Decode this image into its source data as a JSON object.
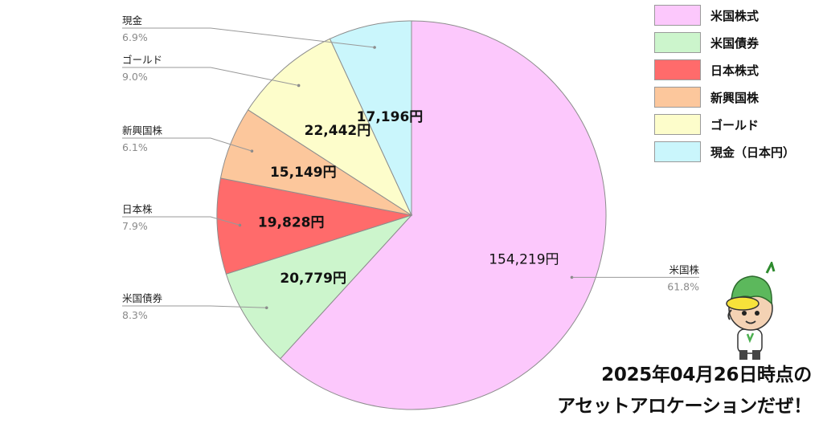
{
  "chart_data": {
    "type": "pie",
    "slices": [
      {
        "key": "us_stock",
        "side_label": "米国株",
        "percent_label": "61.8%",
        "percent": 61.8,
        "value_label": "154,219円",
        "value": 154219,
        "color": "#fcc8fc"
      },
      {
        "key": "us_bond",
        "side_label": "米国債券",
        "percent_label": "8.3%",
        "percent": 8.3,
        "value_label": "20,779円",
        "value": 20779,
        "color": "#ccf5cc"
      },
      {
        "key": "jp_stock",
        "side_label": "日本株",
        "percent_label": "7.9%",
        "percent": 7.9,
        "value_label": "19,828円",
        "value": 19828,
        "color": "#ff6b6b"
      },
      {
        "key": "emerging",
        "side_label": "新興国株",
        "percent_label": "6.1%",
        "percent": 6.1,
        "value_label": "15,149円",
        "value": 15149,
        "color": "#fcc79c"
      },
      {
        "key": "gold",
        "side_label": "ゴールド",
        "percent_label": "9.0%",
        "percent": 9.0,
        "value_label": "22,442円",
        "value": 22442,
        "color": "#fdfdcb"
      },
      {
        "key": "cash",
        "side_label": "現金",
        "percent_label": "6.9%",
        "percent": 6.9,
        "value_label": "17,196円",
        "value": 17196,
        "color": "#caf6fc"
      }
    ],
    "legend_position": "top-right",
    "legend": [
      {
        "label": "米国株式",
        "color": "#fcc8fc"
      },
      {
        "label": "米国債券",
        "color": "#ccf5cc"
      },
      {
        "label": "日本株式",
        "color": "#ff6b6b"
      },
      {
        "label": "新興国株",
        "color": "#fcc79c"
      },
      {
        "label": "ゴールド",
        "color": "#fdfdcb"
      },
      {
        "label": "現金（日本円）",
        "color": "#caf6fc"
      }
    ]
  },
  "banner": {
    "line1": "2025年04月26日時点の",
    "line2": "アセットアロケーションだぜ！"
  },
  "mascot": {
    "icon": "kappa-mascot-icon"
  }
}
